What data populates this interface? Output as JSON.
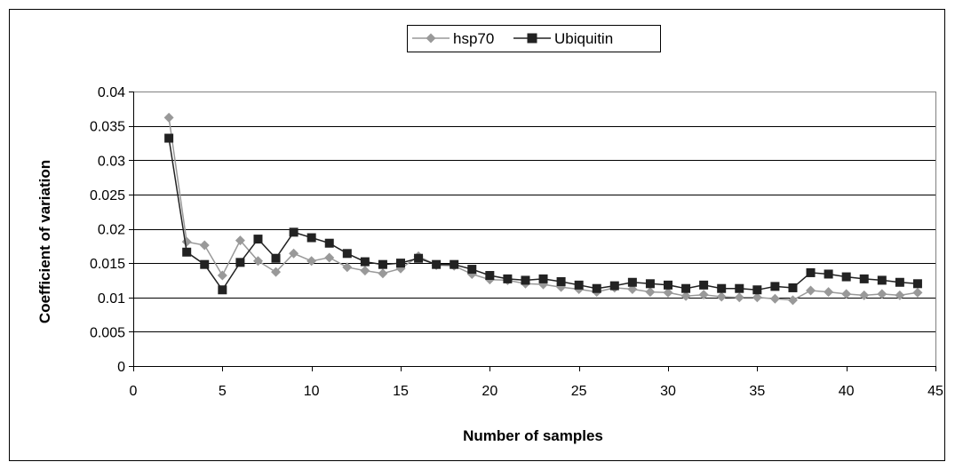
{
  "chart_data": {
    "type": "line",
    "title": "",
    "xlabel": "Number of samples",
    "ylabel": "Coefficient of variation",
    "xlim": [
      0,
      45
    ],
    "ylim": [
      0,
      0.04
    ],
    "x_ticks": [
      "0",
      "5",
      "10",
      "15",
      "20",
      "25",
      "30",
      "35",
      "40",
      "45"
    ],
    "x_tick_values": [
      0,
      5,
      10,
      15,
      20,
      25,
      30,
      35,
      40,
      45
    ],
    "y_ticks": [
      "0",
      "0.005",
      "0.01",
      "0.015",
      "0.02",
      "0.025",
      "0.03",
      "0.035",
      "0.04"
    ],
    "y_tick_values": [
      0,
      0.005,
      0.01,
      0.015,
      0.02,
      0.025,
      0.03,
      0.035,
      0.04
    ],
    "grid": "horizontal",
    "legend_position": "top",
    "x": [
      2,
      3,
      4,
      5,
      6,
      7,
      8,
      9,
      10,
      11,
      12,
      13,
      14,
      15,
      16,
      17,
      18,
      19,
      20,
      21,
      22,
      23,
      24,
      25,
      26,
      27,
      28,
      29,
      30,
      31,
      32,
      33,
      34,
      35,
      36,
      37,
      38,
      39,
      40,
      41,
      42,
      43,
      44
    ],
    "series": [
      {
        "name": "hsp70",
        "color": "#999999",
        "marker": "diamond",
        "values": [
          0.0362,
          0.0181,
          0.0176,
          0.0132,
          0.0183,
          0.0153,
          0.0137,
          0.0164,
          0.0153,
          0.0158,
          0.0144,
          0.0139,
          0.0135,
          0.0142,
          0.016,
          0.0147,
          0.0146,
          0.0134,
          0.0126,
          0.0125,
          0.012,
          0.0119,
          0.0115,
          0.0112,
          0.0108,
          0.0114,
          0.0112,
          0.0108,
          0.0107,
          0.0102,
          0.0104,
          0.0101,
          0.01,
          0.01,
          0.0098,
          0.0096,
          0.011,
          0.0108,
          0.0105,
          0.0103,
          0.0105,
          0.0103,
          0.0107
        ]
      },
      {
        "name": "Ubiquitin",
        "color": "#222222",
        "marker": "square",
        "values": [
          0.0332,
          0.0166,
          0.0148,
          0.0111,
          0.0151,
          0.0185,
          0.0157,
          0.0195,
          0.0187,
          0.0179,
          0.0164,
          0.0152,
          0.0148,
          0.015,
          0.0157,
          0.0148,
          0.0148,
          0.0141,
          0.0132,
          0.0127,
          0.0125,
          0.0127,
          0.0123,
          0.0118,
          0.0113,
          0.0117,
          0.0122,
          0.012,
          0.0118,
          0.0113,
          0.0118,
          0.0113,
          0.0113,
          0.0111,
          0.0116,
          0.0114,
          0.0136,
          0.0134,
          0.013,
          0.0127,
          0.0125,
          0.0122,
          0.012
        ]
      }
    ]
  }
}
